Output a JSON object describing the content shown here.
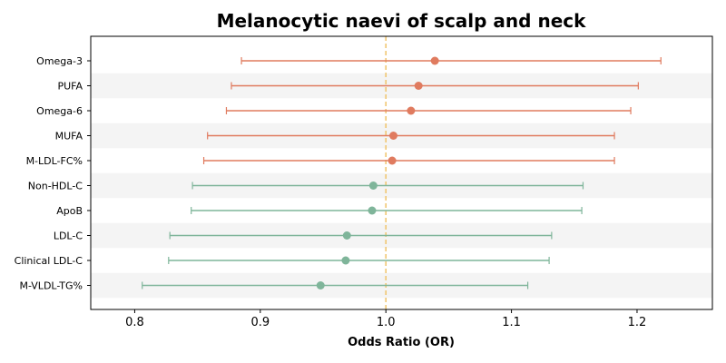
{
  "colors": {
    "positive": "#e07b5f",
    "negative": "#7fb59a",
    "reference": "#f0c46a",
    "band": "#f4f4f4"
  },
  "chart_data": {
    "type": "forest",
    "title": "Melanocytic naevi of scalp and neck",
    "xlabel": "Odds Ratio (OR)",
    "xlim": [
      0.765,
      1.26
    ],
    "xticks": [
      0.8,
      0.9,
      1.0,
      1.1,
      1.2
    ],
    "xtick_labels": [
      "0.8",
      "0.9",
      "1.0",
      "1.1",
      "1.2"
    ],
    "reference_line": 1.0,
    "rows": [
      {
        "label": "Omega-3",
        "or": 1.039,
        "lo": 0.885,
        "hi": 1.219
      },
      {
        "label": "PUFA",
        "or": 1.026,
        "lo": 0.877,
        "hi": 1.201
      },
      {
        "label": "Omega-6",
        "or": 1.02,
        "lo": 0.873,
        "hi": 1.195
      },
      {
        "label": "MUFA",
        "or": 1.006,
        "lo": 0.858,
        "hi": 1.182
      },
      {
        "label": "M-LDL-FC%",
        "or": 1.005,
        "lo": 0.855,
        "hi": 1.182
      },
      {
        "label": "Non-HDL-C",
        "or": 0.99,
        "lo": 0.846,
        "hi": 1.157
      },
      {
        "label": "ApoB",
        "or": 0.989,
        "lo": 0.845,
        "hi": 1.156
      },
      {
        "label": "LDL-C",
        "or": 0.969,
        "lo": 0.828,
        "hi": 1.132
      },
      {
        "label": "Clinical LDL-C",
        "or": 0.968,
        "lo": 0.827,
        "hi": 1.13
      },
      {
        "label": "M-VLDL-TG%",
        "or": 0.948,
        "lo": 0.806,
        "hi": 1.113
      }
    ]
  }
}
